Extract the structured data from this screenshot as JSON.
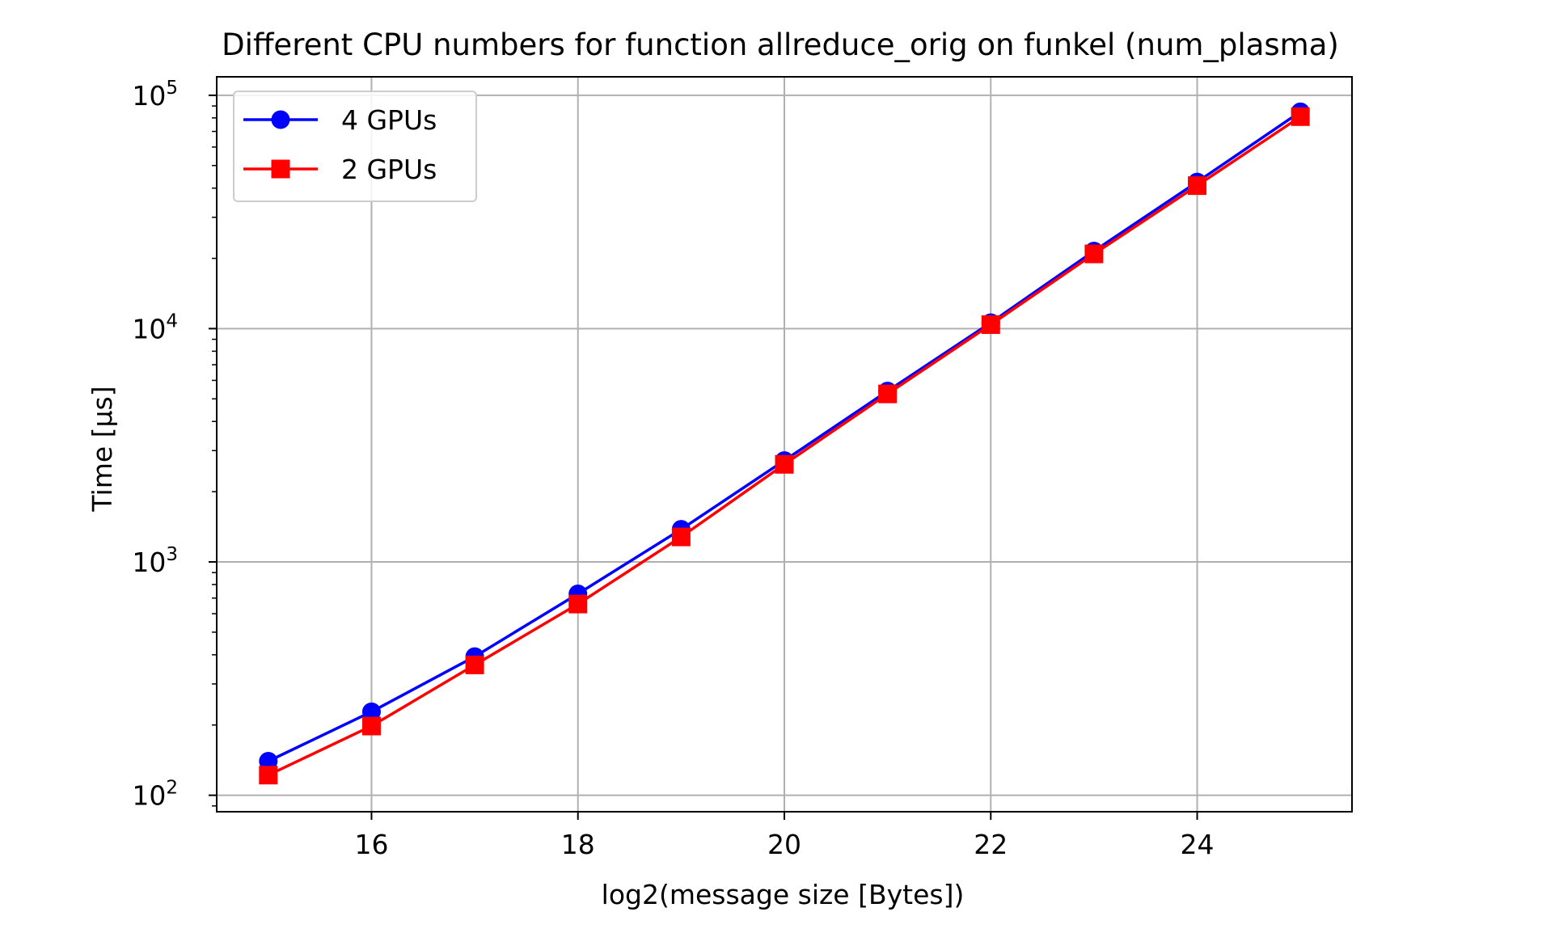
{
  "chart_data": {
    "type": "line",
    "title": "Different CPU numbers for function allreduce_orig on funkel (num_plasma)",
    "xlabel": "log2(message size [Bytes])",
    "ylabel": "Time [µs]",
    "x": [
      15,
      16,
      17,
      18,
      19,
      20,
      21,
      22,
      23,
      24,
      25
    ],
    "xlim": [
      14.5,
      25.5
    ],
    "xticks": [
      16,
      18,
      20,
      22,
      24
    ],
    "yscale": "log",
    "ylim": [
      85,
      120000
    ],
    "yticks": [
      {
        "value": 100,
        "base": "10",
        "exp": "2"
      },
      {
        "value": 1000,
        "base": "10",
        "exp": "3"
      },
      {
        "value": 10000,
        "base": "10",
        "exp": "4"
      },
      {
        "value": 100000,
        "base": "10",
        "exp": "5"
      }
    ],
    "grid": true,
    "legend_position": "upper-left",
    "series": [
      {
        "name": "4 GPUs",
        "color": "#0000ff",
        "marker": "circle",
        "values": [
          140,
          228,
          393,
          730,
          1380,
          2720,
          5400,
          10600,
          21500,
          42500,
          85000
        ]
      },
      {
        "name": "2 GPUs",
        "color": "#ff0000",
        "marker": "square",
        "values": [
          122,
          198,
          362,
          660,
          1280,
          2620,
          5250,
          10400,
          20900,
          41000,
          81000
        ]
      }
    ]
  }
}
